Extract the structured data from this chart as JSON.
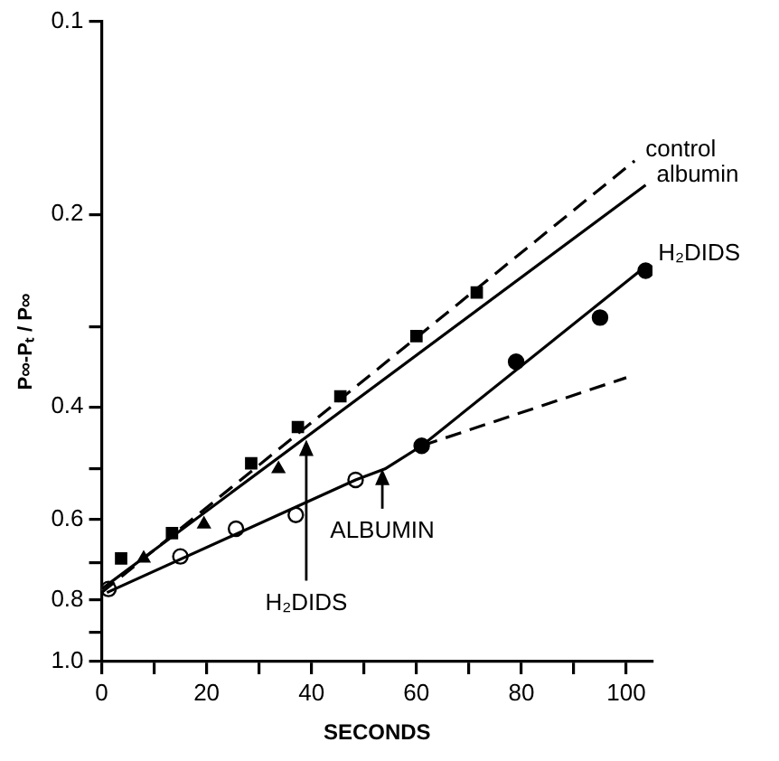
{
  "chart_data": {
    "type": "line",
    "xlabel": "SECONDS",
    "ylabel": "P∞-Pₜ / P∞",
    "log": "y",
    "xlim": [
      0,
      105
    ],
    "xticks": [
      0,
      {
        "value": 10,
        "label": null
      },
      20,
      {
        "value": 30,
        "label": null
      },
      40,
      {
        "value": 50,
        "label": null
      },
      60,
      {
        "value": 70,
        "label": null
      },
      80,
      {
        "value": 90,
        "label": null
      },
      100
    ],
    "ylim": [
      1.0,
      0.1
    ],
    "yticks": [
      0.1,
      0.2,
      {
        "value": 0.3,
        "label": null
      },
      0.4,
      {
        "value": 0.5,
        "label": null
      },
      0.6,
      {
        "value": 0.7,
        "label": null
      },
      0.8,
      {
        "value": 0.9,
        "label": null
      },
      {
        "value": 1.0,
        "label": "1.0"
      }
    ],
    "series": [
      {
        "name": "control",
        "type": "line",
        "line_style": "dashed",
        "marker": "none",
        "color": "#000000",
        "x": [
          0,
          101.6
        ],
        "values": [
          0.78,
          0.165
        ]
      },
      {
        "type": "scatter",
        "marker": "square",
        "color": "#000000",
        "x": [
          3.7,
          13.4,
          28.5,
          37.4,
          45.5,
          60,
          71.5
        ],
        "values": [
          0.69,
          0.63,
          0.49,
          0.43,
          0.385,
          0.31,
          0.265
        ]
      },
      {
        "name": "albumin",
        "type": "line",
        "line_style": "solid",
        "marker": "none",
        "color": "#000000",
        "x": [
          0,
          103.7
        ],
        "values": [
          0.77,
          0.18
        ]
      },
      {
        "type": "scatter",
        "marker": "triangle",
        "color": "#000000",
        "x": [
          8,
          19.5,
          33.7
        ],
        "values": [
          0.69,
          0.61,
          0.5
        ]
      },
      {
        "type": "line",
        "line_style": "solid",
        "marker": "none",
        "color": "#000000",
        "x": [
          1,
          48.4,
          54,
          61
        ],
        "values": [
          0.78,
          0.52,
          0.5,
          0.46
        ]
      },
      {
        "type": "scatter",
        "marker": "circle",
        "color": "#ffffff",
        "x": [
          1.3,
          15,
          25.6,
          37,
          48.4
        ],
        "values": [
          0.77,
          0.685,
          0.62,
          0.59,
          0.52
        ]
      },
      {
        "name": "H₂DIDS",
        "type": "line",
        "line_style": "solid",
        "marker": "none",
        "color": "#000000",
        "x": [
          61,
          104
        ],
        "values": [
          0.46,
          0.24
        ]
      },
      {
        "type": "scatter",
        "marker": "circle",
        "color": "#000000",
        "x": [
          61,
          79,
          95,
          103.7
        ],
        "values": [
          0.46,
          0.34,
          0.29,
          0.245
        ]
      },
      {
        "type": "line",
        "line_style": "dashed",
        "marker": "none",
        "color": "#000000",
        "x": [
          61,
          100
        ],
        "values": [
          0.46,
          0.36
        ]
      }
    ],
    "annotations": [
      {
        "text": "H₂DIDS",
        "x": 39,
        "y": 0.45
      },
      {
        "text": "ALBUMIN",
        "x": 53.5,
        "y": 0.5
      }
    ]
  }
}
